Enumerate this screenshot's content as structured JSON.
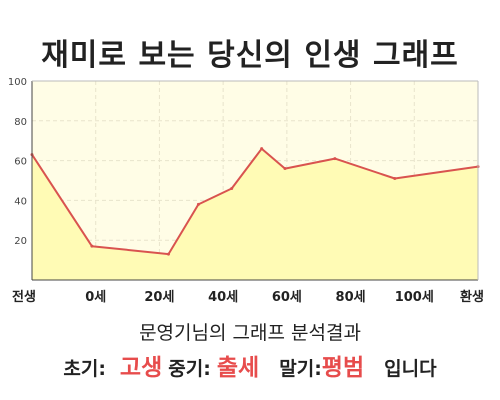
{
  "title": "재미로 보는 당신의 인생 그래프",
  "subtitle": "문영기님의 그래프 분석결과",
  "result": {
    "early_label": "초기:",
    "early_value": "고생",
    "middle_label": "중기:",
    "middle_value": "출세",
    "late_label": "말기:",
    "late_value": "평범",
    "suffix": "입니다"
  },
  "colors": {
    "plot_bg": "#fffde6",
    "area_fill": "#fffbb5",
    "line": "#d9534f",
    "grid": "#e8e4cc"
  },
  "chart_data": {
    "type": "area",
    "title": "재미로 보는 당신의 인생 그래프",
    "xlabel": "",
    "ylabel": "",
    "x_ticks": [
      "전생",
      "0세",
      "20세",
      "40세",
      "60세",
      "80세",
      "100세",
      "환생"
    ],
    "y_ticks": [
      20,
      40,
      60,
      80,
      100
    ],
    "ylim": [
      0,
      100
    ],
    "grid": true,
    "series": [
      {
        "x": [
          -18,
          0,
          23,
          32,
          42,
          51,
          58,
          73,
          91,
          116
        ],
        "values": [
          63,
          17,
          13,
          38,
          46,
          66,
          56,
          61,
          51,
          57
        ]
      }
    ]
  }
}
